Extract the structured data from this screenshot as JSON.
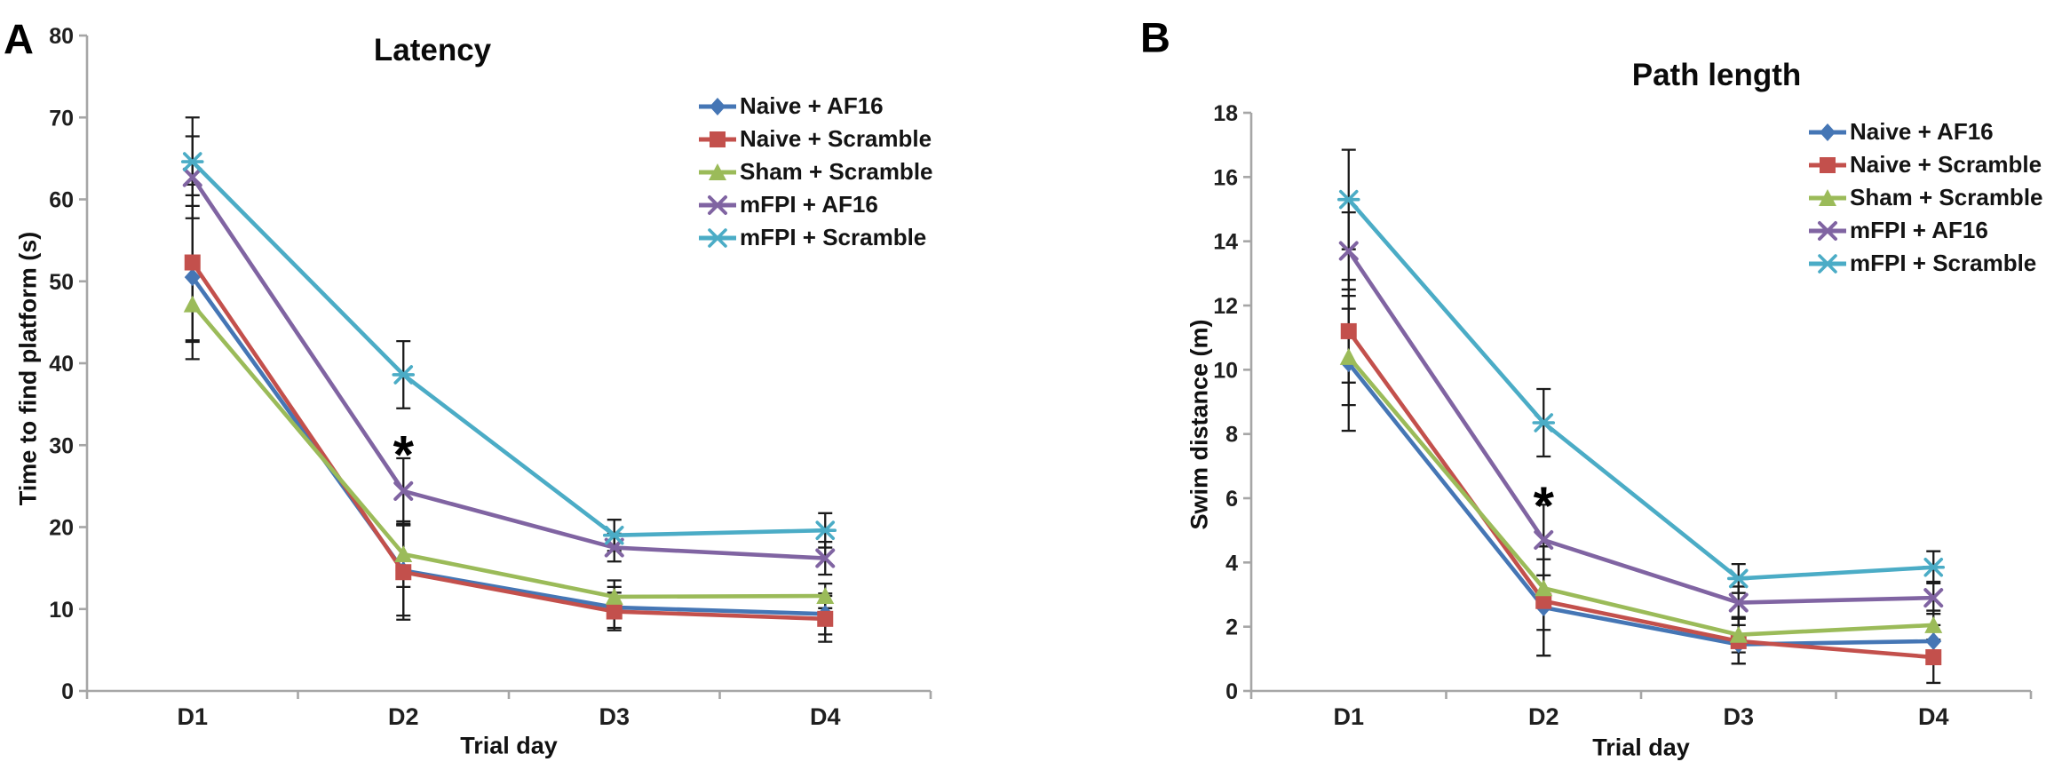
{
  "figure_background": "#ffffff",
  "chart_data": [
    {
      "type": "line",
      "panel_label": "A",
      "title": "Latency",
      "xlabel": "Trial day",
      "ylabel": "Time to find platform (s)",
      "categories": [
        "D1",
        "D2",
        "D3",
        "D4"
      ],
      "ylim": [
        0,
        80
      ],
      "ytick_step": 10,
      "ytick_labels": [
        "0",
        "10",
        "20",
        "30",
        "40",
        "50",
        "60",
        "70",
        "80"
      ],
      "grid": false,
      "legend_position": "upper-right",
      "error_bars": true,
      "annotations": [
        {
          "text": "*",
          "category": "D2",
          "y": 30.5
        }
      ],
      "series": [
        {
          "name": "Naive + AF16",
          "color": "#4576B5",
          "marker": "diamond",
          "values": [
            50.5,
            14.7,
            10.2,
            9.4
          ],
          "errors": [
            10.0,
            5.5,
            2.5,
            2.5
          ]
        },
        {
          "name": "Naive + Scramble",
          "color": "#C3504C",
          "marker": "square",
          "values": [
            52.3,
            14.5,
            9.7,
            8.8
          ],
          "errors": [
            9.5,
            5.8,
            2.3,
            2.8
          ]
        },
        {
          "name": "Sham + Scramble",
          "color": "#9BBB59",
          "marker": "triangle",
          "values": [
            47.2,
            16.7,
            11.5,
            11.6
          ],
          "errors": [
            4.6,
            4.0,
            2.0,
            1.5
          ]
        },
        {
          "name": "mFPI + AF16",
          "color": "#8064A2",
          "marker": "x",
          "values": [
            62.7,
            24.4,
            17.5,
            16.2
          ],
          "errors": [
            5.0,
            4.0,
            1.7,
            2.0
          ]
        },
        {
          "name": "mFPI + Scramble",
          "color": "#4BACC6",
          "marker": "star",
          "values": [
            64.6,
            38.6,
            19.0,
            19.6
          ],
          "errors": [
            5.4,
            4.1,
            1.9,
            2.1
          ]
        }
      ]
    },
    {
      "type": "line",
      "panel_label": "B",
      "title": "Path length",
      "xlabel": "Trial day",
      "ylabel": "Swim distance (m)",
      "categories": [
        "D1",
        "D2",
        "D3",
        "D4"
      ],
      "ylim": [
        0,
        18
      ],
      "ytick_step": 2,
      "ytick_labels": [
        "0",
        "2",
        "4",
        "6",
        "8",
        "10",
        "12",
        "14",
        "16",
        "18"
      ],
      "grid": false,
      "legend_position": "upper-right",
      "error_bars": true,
      "annotations": [
        {
          "text": "*",
          "category": "D2",
          "y": 6.2
        }
      ],
      "series": [
        {
          "name": "Naive + AF16",
          "color": "#4576B5",
          "marker": "diamond",
          "values": [
            10.2,
            2.6,
            1.45,
            1.55
          ],
          "errors": [
            2.1,
            1.5,
            0.6,
            0.5
          ]
        },
        {
          "name": "Naive + Scramble",
          "color": "#C3504C",
          "marker": "square",
          "values": [
            11.2,
            2.8,
            1.55,
            1.05
          ],
          "errors": [
            1.6,
            1.7,
            0.7,
            0.8
          ]
        },
        {
          "name": "Sham + Scramble",
          "color": "#9BBB59",
          "marker": "triangle",
          "values": [
            10.4,
            3.2,
            1.75,
            2.05
          ],
          "errors": [
            1.5,
            1.3,
            0.55,
            0.45
          ]
        },
        {
          "name": "mFPI + AF16",
          "color": "#8064A2",
          "marker": "x",
          "values": [
            13.7,
            4.7,
            2.75,
            2.9
          ],
          "errors": [
            1.2,
            1.1,
            0.5,
            0.5
          ]
        },
        {
          "name": "mFPI + Scramble",
          "color": "#4BACC6",
          "marker": "star",
          "values": [
            15.3,
            8.35,
            3.5,
            3.85
          ],
          "errors": [
            1.55,
            1.05,
            0.45,
            0.5
          ]
        }
      ]
    }
  ]
}
